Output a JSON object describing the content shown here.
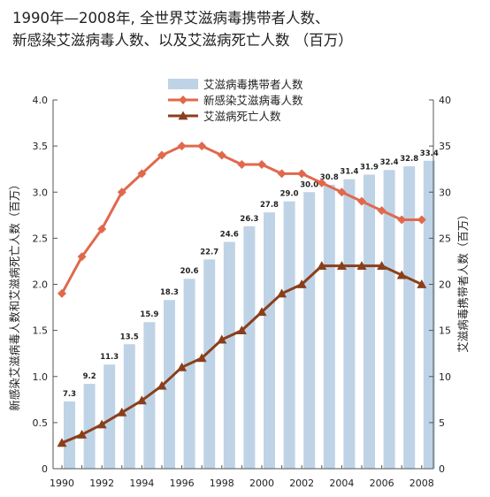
{
  "title": {
    "line1": "1990年—2008年, 全世界艾滋病毒携带者人数、",
    "line2": "新感染艾滋病毒人数、以及艾滋病死亡人数 （百万）"
  },
  "colors": {
    "bar": "#bfd3e6",
    "new_infections": "#e0694d",
    "deaths": "#8a3f1c",
    "axis": "#555555"
  },
  "chart_data": {
    "type": "bar+line",
    "x": [
      1990,
      1991,
      1992,
      1993,
      1994,
      1995,
      1996,
      1997,
      1998,
      1999,
      2000,
      2001,
      2002,
      2003,
      2004,
      2005,
      2006,
      2007,
      2008
    ],
    "x_tick_labels": [
      "1990",
      "1992",
      "1994",
      "1996",
      "1998",
      "2000",
      "2002",
      "2004",
      "2006",
      "2008"
    ],
    "ylabel_left": "新感染艾滋病毒人数和艾滋病死亡人数（百万）",
    "ylabel_right": "艾滋病毒携带者人数（百万）",
    "ylim_left": [
      0,
      4.0
    ],
    "ylim_right": [
      0,
      40
    ],
    "y_left_ticks": [
      "0",
      "0.5",
      "1.0",
      "1.5",
      "2.0",
      "2.5",
      "3.0",
      "3.5",
      "4.0"
    ],
    "y_right_ticks": [
      "0",
      "5",
      "10",
      "15",
      "20",
      "25",
      "30",
      "35",
      "40"
    ],
    "grid": false,
    "legend_position": "top-center",
    "series": [
      {
        "name": "艾滋病毒携带者人数",
        "type": "bar",
        "axis": "right",
        "values": [
          7.3,
          9.2,
          11.3,
          13.5,
          15.9,
          18.3,
          20.6,
          22.7,
          24.6,
          26.3,
          27.8,
          29.0,
          30.0,
          30.8,
          31.4,
          31.9,
          32.4,
          32.8,
          33.4
        ],
        "labels": [
          "7.3",
          "9.2",
          "11.3",
          "13.5",
          "15.9",
          "18.3",
          "20.6",
          "22.7",
          "24.6",
          "26.3",
          "27.8",
          "29.0",
          "30.0",
          "30.8",
          "31.4",
          "31.9",
          "32.4",
          "32.8",
          "33.4"
        ]
      },
      {
        "name": "新感染艾滋病毒人数",
        "type": "line",
        "marker": "diamond",
        "axis": "left",
        "values": [
          1.9,
          2.3,
          2.6,
          3.0,
          3.2,
          3.4,
          3.5,
          3.5,
          3.4,
          3.3,
          3.3,
          3.2,
          3.2,
          3.1,
          3.0,
          2.9,
          2.8,
          2.7,
          2.7
        ]
      },
      {
        "name": "艾滋病死亡人数",
        "type": "line",
        "marker": "triangle",
        "axis": "left",
        "values": [
          0.28,
          0.37,
          0.48,
          0.61,
          0.74,
          0.9,
          1.1,
          1.2,
          1.4,
          1.5,
          1.7,
          1.9,
          2.0,
          2.2,
          2.2,
          2.2,
          2.2,
          2.1,
          2.0
        ]
      }
    ]
  }
}
